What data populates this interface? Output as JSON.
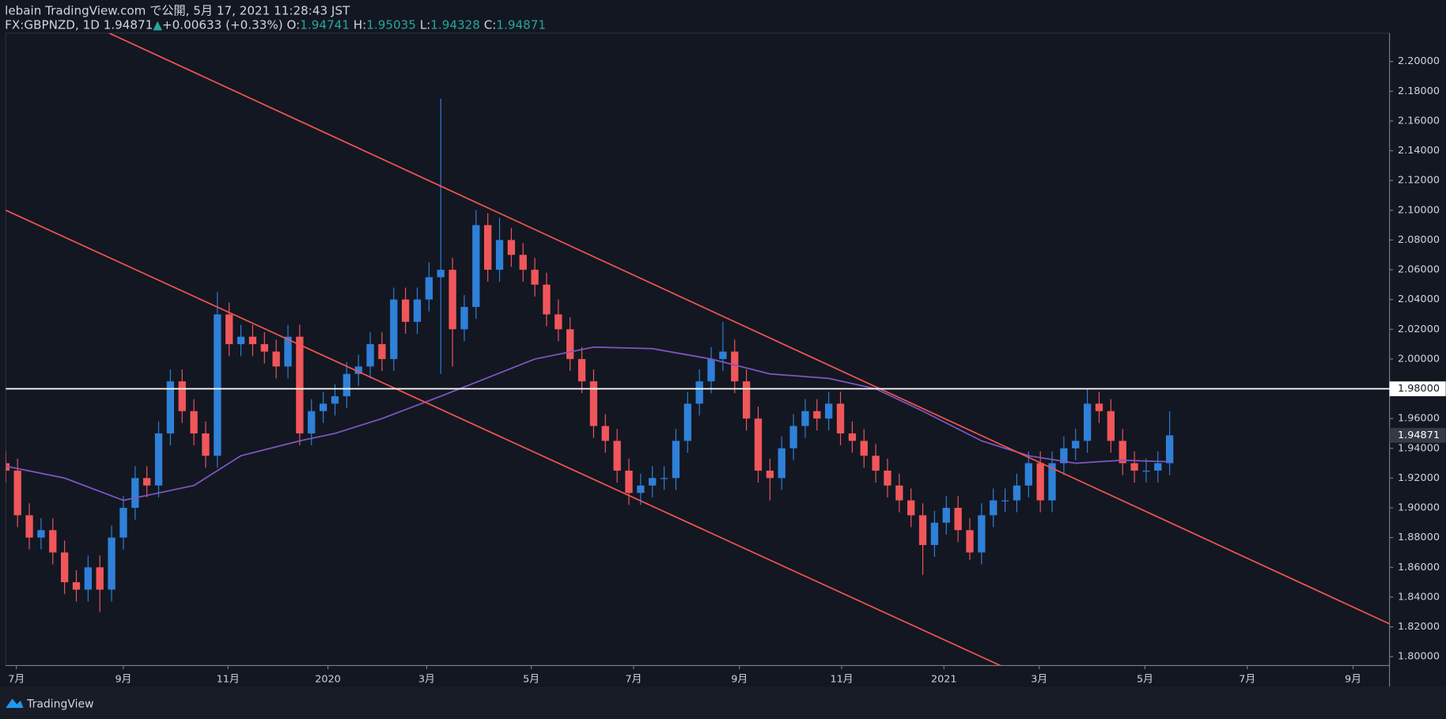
{
  "header": {
    "line1": "lebain TradingView.com で公開, 5月 17, 2021 11:28:43 JST",
    "symbol": "FX:GBPNZD, 1D",
    "last": "1.94871",
    "arrow": "▲",
    "change": "+0.00633 (+0.33%)",
    "o_label": "O:",
    "o": "1.94741",
    "h_label": "H:",
    "h": "1.95035",
    "l_label": "L:",
    "l": "1.94328",
    "c_label": "C:",
    "c": "1.94871"
  },
  "footer": {
    "brand": "TradingView"
  },
  "chart_data": {
    "type": "candlestick",
    "up_color": "#2f80d8",
    "down_color": "#f0565a",
    "open": [
      1.93,
      1.925,
      1.895,
      1.88,
      1.885,
      1.87,
      1.85,
      1.845,
      1.86,
      1.845,
      1.88,
      1.9,
      1.92,
      1.915,
      1.95,
      1.985,
      1.965,
      1.95,
      1.935,
      2.03,
      2.01,
      2.015,
      2.01,
      2.005,
      1.995,
      2.015,
      1.95,
      1.965,
      1.97,
      1.975,
      1.99,
      1.995,
      2.01,
      2.0,
      2.04,
      2.025,
      2.04,
      2.055,
      2.06,
      2.02,
      2.035,
      2.09,
      2.06,
      2.08,
      2.07,
      2.06,
      2.05,
      2.03,
      2.02,
      2.0,
      1.985,
      1.955,
      1.945,
      1.925,
      1.91,
      1.915,
      1.92,
      1.92,
      1.945,
      1.97,
      1.985,
      2.0,
      2.005,
      1.985,
      1.96,
      1.925,
      1.92,
      1.94,
      1.955,
      1.965,
      1.96,
      1.97,
      1.95,
      1.945,
      1.935,
      1.925,
      1.915,
      1.905,
      1.895,
      1.875,
      1.89,
      1.9,
      1.885,
      1.87,
      1.895,
      1.905,
      1.905,
      1.915,
      1.93,
      1.905,
      1.93,
      1.94,
      1.945,
      1.97,
      1.965,
      1.945,
      1.93,
      1.925,
      1.925,
      1.93
    ],
    "high": [
      1.938,
      1.933,
      1.903,
      1.893,
      1.893,
      1.878,
      1.858,
      1.868,
      1.868,
      1.888,
      1.908,
      1.928,
      1.928,
      1.958,
      1.993,
      1.993,
      1.973,
      1.958,
      2.045,
      2.038,
      2.023,
      2.023,
      2.018,
      2.013,
      2.023,
      2.023,
      1.973,
      1.978,
      1.983,
      1.998,
      2.003,
      2.018,
      2.018,
      2.048,
      2.048,
      2.048,
      2.065,
      2.175,
      2.068,
      2.043,
      2.1,
      2.098,
      2.095,
      2.088,
      2.078,
      2.068,
      2.058,
      2.04,
      2.028,
      2.008,
      1.993,
      1.963,
      1.953,
      1.933,
      1.923,
      1.928,
      1.928,
      1.953,
      1.978,
      1.993,
      2.008,
      2.025,
      2.013,
      1.993,
      1.968,
      1.933,
      1.948,
      1.963,
      1.973,
      1.973,
      1.978,
      1.978,
      1.958,
      1.953,
      1.943,
      1.933,
      1.923,
      1.913,
      1.903,
      1.898,
      1.908,
      1.908,
      1.893,
      1.903,
      1.913,
      1.913,
      1.923,
      1.938,
      1.938,
      1.938,
      1.948,
      1.953,
      1.98,
      1.978,
      1.973,
      1.953,
      1.938,
      1.933,
      1.938,
      1.965
    ],
    "low": [
      1.917,
      1.887,
      1.872,
      1.872,
      1.862,
      1.842,
      1.837,
      1.837,
      1.83,
      1.837,
      1.872,
      1.892,
      1.907,
      1.907,
      1.942,
      1.957,
      1.942,
      1.927,
      1.927,
      2.002,
      2.002,
      2.002,
      1.997,
      1.987,
      1.987,
      1.942,
      1.942,
      1.957,
      1.962,
      1.967,
      1.982,
      1.987,
      1.992,
      1.992,
      2.017,
      2.017,
      2.032,
      1.99,
      1.995,
      2.012,
      2.027,
      2.052,
      2.052,
      2.062,
      2.052,
      2.042,
      2.022,
      2.012,
      1.992,
      1.977,
      1.947,
      1.937,
      1.917,
      1.902,
      1.902,
      1.907,
      1.912,
      1.912,
      1.937,
      1.962,
      1.977,
      1.992,
      1.977,
      1.952,
      1.917,
      1.905,
      1.912,
      1.932,
      1.947,
      1.952,
      1.952,
      1.942,
      1.937,
      1.927,
      1.917,
      1.907,
      1.897,
      1.887,
      1.855,
      1.867,
      1.882,
      1.877,
      1.865,
      1.862,
      1.887,
      1.897,
      1.897,
      1.907,
      1.897,
      1.897,
      1.922,
      1.932,
      1.937,
      1.957,
      1.937,
      1.922,
      1.917,
      1.917,
      1.917,
      1.922
    ],
    "close": [
      1.925,
      1.895,
      1.88,
      1.885,
      1.87,
      1.85,
      1.845,
      1.86,
      1.845,
      1.88,
      1.9,
      1.92,
      1.915,
      1.95,
      1.985,
      1.965,
      1.95,
      1.935,
      2.03,
      2.01,
      2.015,
      2.01,
      2.005,
      1.995,
      2.015,
      1.95,
      1.965,
      1.97,
      1.975,
      1.99,
      1.995,
      2.01,
      2.0,
      2.04,
      2.025,
      2.04,
      2.055,
      2.06,
      2.02,
      2.035,
      2.09,
      2.06,
      2.08,
      2.07,
      2.06,
      2.05,
      2.03,
      2.02,
      2.0,
      1.985,
      1.955,
      1.945,
      1.925,
      1.91,
      1.915,
      1.92,
      1.92,
      1.945,
      1.97,
      1.985,
      2.0,
      2.005,
      1.985,
      1.96,
      1.925,
      1.92,
      1.94,
      1.955,
      1.965,
      1.96,
      1.97,
      1.95,
      1.945,
      1.935,
      1.925,
      1.915,
      1.905,
      1.895,
      1.875,
      1.89,
      1.9,
      1.885,
      1.87,
      1.895,
      1.905,
      1.905,
      1.915,
      1.93,
      1.905,
      1.93,
      1.94,
      1.945,
      1.97,
      1.965,
      1.945,
      1.93,
      1.925,
      1.925,
      1.93,
      1.94871
    ],
    "ma": {
      "color": "#7e57c2",
      "x": [
        0,
        5,
        10,
        16,
        20,
        25,
        28,
        32,
        37,
        45,
        50,
        55,
        60,
        65,
        70,
        74,
        78,
        83,
        87,
        91,
        95,
        99
      ],
      "values": [
        1.928,
        1.92,
        1.905,
        1.915,
        1.935,
        1.945,
        1.95,
        1.96,
        1.975,
        2.0,
        2.008,
        2.007,
        2.0,
        1.99,
        1.987,
        1.98,
        1.965,
        1.945,
        1.935,
        1.93,
        1.932,
        1.931
      ]
    },
    "trend_lines": [
      {
        "color": "#f05350",
        "x": [
          8.8,
          117.7
        ],
        "values": [
          2.219,
          1.822
        ]
      },
      {
        "color": "#f05350",
        "x": [
          0,
          84.6
        ],
        "values": [
          2.1,
          1.794
        ]
      }
    ],
    "hline": {
      "value": 1.98,
      "label": "1.98000",
      "color": "#ffffff"
    },
    "price_tag": {
      "value": 1.94871,
      "label": "1.94871"
    },
    "xlim": [
      0,
      117.7
    ],
    "ylim": [
      1.794,
      2.219
    ],
    "xticks": [
      {
        "value": 0.9,
        "label": "7月"
      },
      {
        "value": 10,
        "label": "9月"
      },
      {
        "value": 18.9,
        "label": "11月"
      },
      {
        "value": 27.4,
        "label": "2020"
      },
      {
        "value": 35.8,
        "label": "3月"
      },
      {
        "value": 44.7,
        "label": "5月"
      },
      {
        "value": 53.4,
        "label": "7月"
      },
      {
        "value": 62.4,
        "label": "9月"
      },
      {
        "value": 71.1,
        "label": "11月"
      },
      {
        "value": 79.8,
        "label": "2021"
      },
      {
        "value": 87.9,
        "label": "3月"
      },
      {
        "value": 96.9,
        "label": "5月"
      },
      {
        "value": 105.6,
        "label": "7月"
      },
      {
        "value": 114.6,
        "label": "9月"
      }
    ],
    "yticks": [
      {
        "value": 1.8,
        "label": "1.80000"
      },
      {
        "value": 1.82,
        "label": "1.82000"
      },
      {
        "value": 1.84,
        "label": "1.84000"
      },
      {
        "value": 1.86,
        "label": "1.86000"
      },
      {
        "value": 1.88,
        "label": "1.88000"
      },
      {
        "value": 1.9,
        "label": "1.90000"
      },
      {
        "value": 1.92,
        "label": "1.92000"
      },
      {
        "value": 1.94,
        "label": "1.94000"
      },
      {
        "value": 1.96,
        "label": "1.96000"
      },
      {
        "value": 2.0,
        "label": "2.00000"
      },
      {
        "value": 2.02,
        "label": "2.02000"
      },
      {
        "value": 2.04,
        "label": "2.04000"
      },
      {
        "value": 2.06,
        "label": "2.06000"
      },
      {
        "value": 2.08,
        "label": "2.08000"
      },
      {
        "value": 2.1,
        "label": "2.10000"
      },
      {
        "value": 2.12,
        "label": "2.12000"
      },
      {
        "value": 2.14,
        "label": "2.14000"
      },
      {
        "value": 2.16,
        "label": "2.16000"
      },
      {
        "value": 2.18,
        "label": "2.18000"
      },
      {
        "value": 2.2,
        "label": "2.20000"
      }
    ]
  }
}
